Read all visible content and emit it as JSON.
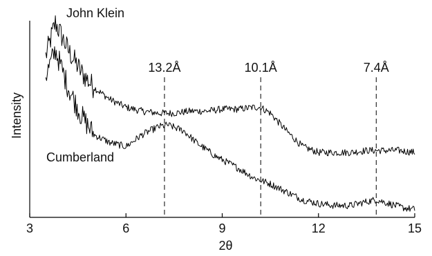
{
  "chart_data": {
    "type": "line",
    "xlabel": "2θ",
    "ylabel": "Intensity",
    "xlim": [
      3,
      15
    ],
    "ylim": [
      0,
      1
    ],
    "y_ticks_shown": false,
    "grid": false,
    "legend": "inline labels",
    "x_ticks": [
      3,
      6,
      9,
      12,
      15
    ],
    "x_tick_labels": [
      "3",
      "6",
      "9",
      "12",
      "15"
    ],
    "reference_lines": [
      {
        "x": 7.2,
        "label": "13.2Å"
      },
      {
        "x": 10.2,
        "label": "10.1Å"
      },
      {
        "x": 13.8,
        "label": "7.4Å"
      }
    ],
    "series": [
      {
        "name": "John Klein",
        "x": [
          3.5,
          3.8,
          4.2,
          4.6,
          5.0,
          5.5,
          6.0,
          6.5,
          7.0,
          7.5,
          8.0,
          8.5,
          9.0,
          9.5,
          10.0,
          10.2,
          10.5,
          11.0,
          11.5,
          12.0,
          12.5,
          13.0,
          13.5,
          14.0,
          14.5,
          15.0
        ],
        "values": [
          0.82,
          0.99,
          0.85,
          0.74,
          0.66,
          0.6,
          0.56,
          0.54,
          0.53,
          0.53,
          0.54,
          0.54,
          0.55,
          0.55,
          0.56,
          0.56,
          0.53,
          0.44,
          0.36,
          0.33,
          0.33,
          0.33,
          0.34,
          0.34,
          0.34,
          0.33
        ],
        "label_position": "top-left"
      },
      {
        "name": "Cumberland",
        "x": [
          3.5,
          3.8,
          4.2,
          4.6,
          5.0,
          5.5,
          6.0,
          6.5,
          7.0,
          7.3,
          7.8,
          8.2,
          8.8,
          9.5,
          10.0,
          10.5,
          11.0,
          11.5,
          12.0,
          12.5,
          13.0,
          13.5,
          13.8,
          14.2,
          14.6,
          15.0
        ],
        "values": [
          0.72,
          0.85,
          0.66,
          0.52,
          0.42,
          0.38,
          0.36,
          0.42,
          0.46,
          0.47,
          0.44,
          0.38,
          0.31,
          0.25,
          0.2,
          0.17,
          0.13,
          0.09,
          0.07,
          0.06,
          0.06,
          0.08,
          0.09,
          0.07,
          0.05,
          0.04
        ],
        "label_position": "left"
      }
    ]
  }
}
